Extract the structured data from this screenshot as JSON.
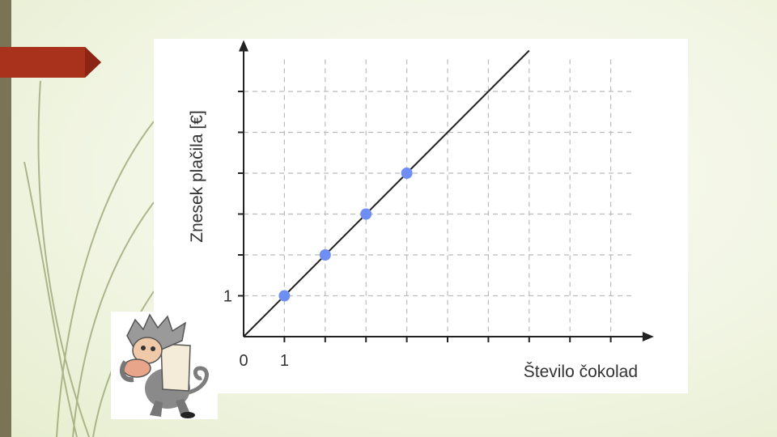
{
  "colors": {
    "background": "#f1f5e3",
    "side_bar": "#7a7457",
    "arrow_accent": "#a8321b",
    "grid": "#bbbbbb",
    "axis": "#222222",
    "line": "#222222",
    "points": "#6f8ef3"
  },
  "decor": {
    "arrow_icon": "arrow-banner-icon",
    "mascot_icon": "cartoon-monkey-icon"
  },
  "chart_data": {
    "type": "scatter",
    "title": "",
    "xlabel": "Število čokolad",
    "ylabel": "Znesek plačila [€]",
    "x_tick_labels": [
      "0",
      "1"
    ],
    "y_tick_labels": [
      "1"
    ],
    "xlim": [
      0,
      9.7
    ],
    "ylim": [
      0,
      6.9
    ],
    "grid": true,
    "series": [
      {
        "points": [
          {
            "x": 1,
            "y": 1
          },
          {
            "x": 2,
            "y": 2
          },
          {
            "x": 3,
            "y": 3
          },
          {
            "x": 4,
            "y": 4
          }
        ]
      }
    ],
    "trend_line": {
      "from": [
        0,
        0
      ],
      "to": [
        7,
        7
      ]
    }
  }
}
